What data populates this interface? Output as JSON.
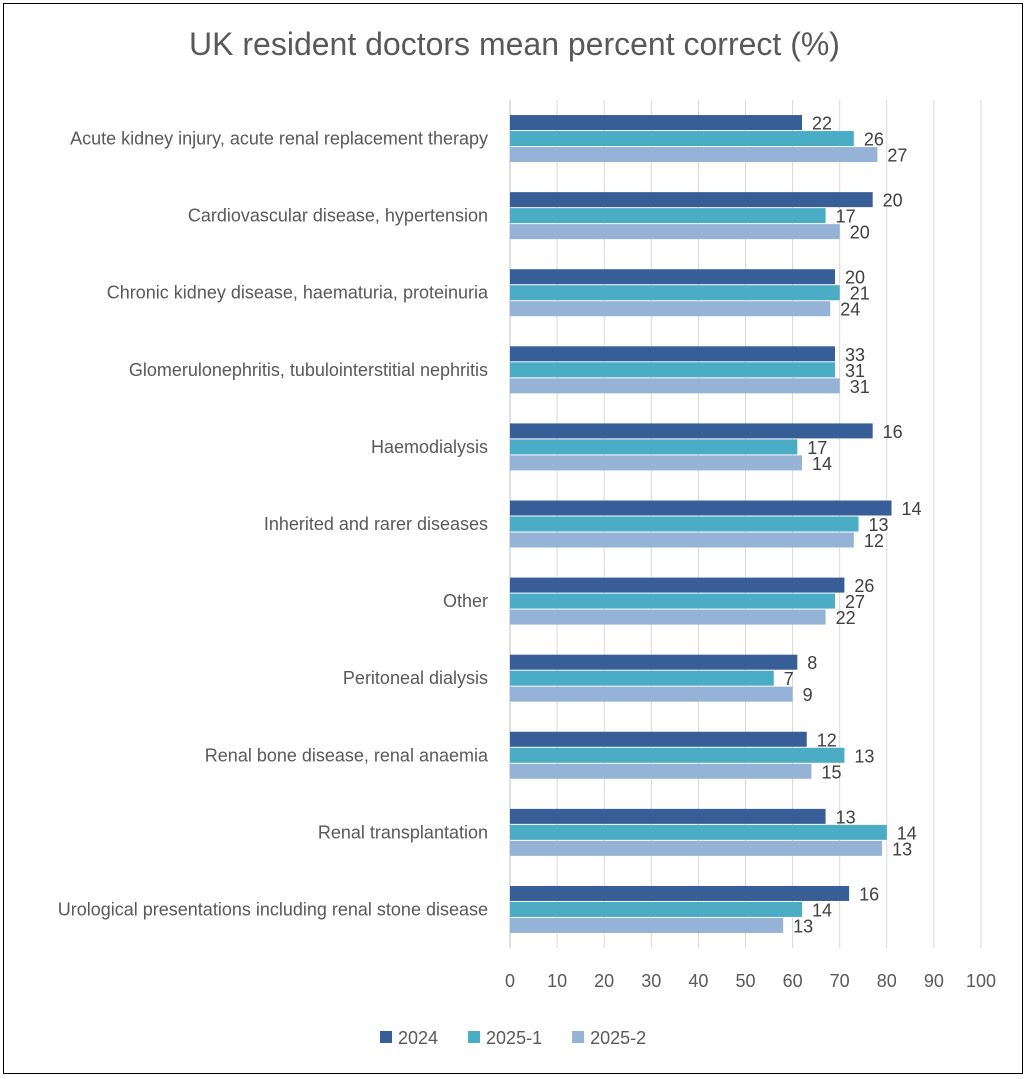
{
  "chart_data": {
    "type": "bar",
    "orientation": "horizontal",
    "title": "UK resident doctors mean percent correct (%)",
    "xlabel": "",
    "ylabel": "",
    "xlim": [
      0,
      100
    ],
    "x_ticks": [
      0,
      10,
      20,
      30,
      40,
      50,
      60,
      70,
      80,
      90,
      100
    ],
    "grid": true,
    "legend_position": "bottom",
    "categories": [
      "Acute kidney injury, acute renal replacement therapy",
      "Cardiovascular disease, hypertension",
      "Chronic kidney disease, haematuria, proteinuria",
      "Glomerulonephritis, tubulointerstitial nephritis",
      "Haemodialysis",
      "Inherited and rarer diseases",
      "Other",
      "Peritoneal dialysis",
      "Renal bone disease, renal anaemia",
      "Renal transplantation",
      "Urological presentations including renal stone disease"
    ],
    "series": [
      {
        "name": "2024",
        "color": "#375E97",
        "values": [
          62,
          77,
          69,
          69,
          77,
          81,
          71,
          61,
          63,
          67,
          72
        ],
        "data_labels": [
          "22",
          "20",
          "20",
          "33",
          "16",
          "14",
          "26",
          "8",
          "12",
          "13",
          "16"
        ]
      },
      {
        "name": "2025-1",
        "color": "#4BACC6",
        "values": [
          73,
          67,
          70,
          69,
          61,
          74,
          69,
          56,
          71,
          80,
          62
        ],
        "data_labels": [
          "26",
          "17",
          "21",
          "31",
          "17",
          "13",
          "27",
          "7",
          "13",
          "14",
          "14"
        ]
      },
      {
        "name": "2025-2",
        "color": "#95B3D7",
        "values": [
          78,
          70,
          68,
          70,
          62,
          73,
          67,
          60,
          64,
          79,
          58
        ],
        "data_labels": [
          "27",
          "20",
          "24",
          "31",
          "14",
          "12",
          "22",
          "9",
          "15",
          "13",
          "13"
        ]
      }
    ]
  }
}
